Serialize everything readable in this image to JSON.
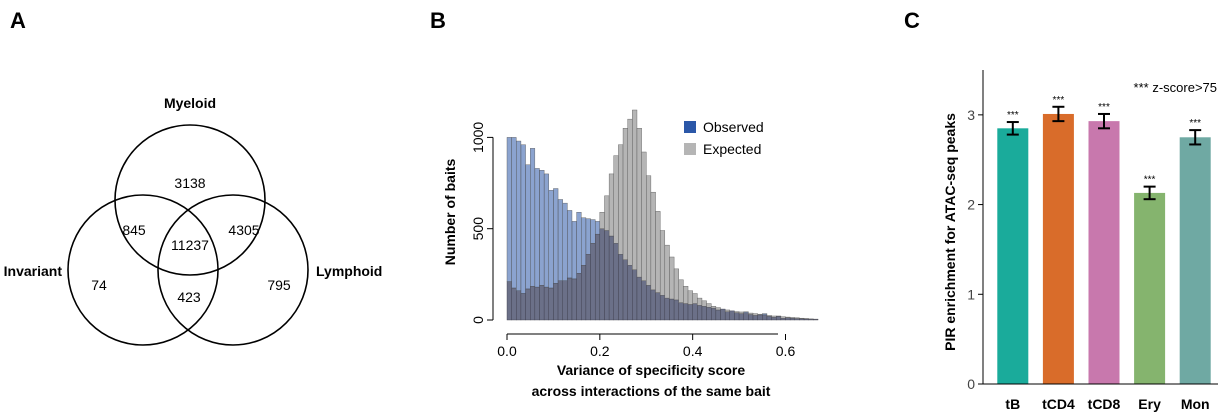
{
  "panels": {
    "a": "A",
    "b": "B",
    "c": "C"
  },
  "colors": {
    "observed": "#2b57a8",
    "expected": "#b5b5b5",
    "overlap": "#6b7088",
    "bars": [
      "#1aab9b",
      "#d96c2a",
      "#c878ad",
      "#85b46e",
      "#6fa9a3"
    ]
  },
  "chart_data": [
    {
      "type": "venn",
      "sets": [
        "Myeloid",
        "Invariant",
        "Lymphoid"
      ],
      "regions": {
        "myeloid_only": "3138",
        "myeloid_invariant": "845",
        "all_three": "11237",
        "myeloid_lymphoid": "4305",
        "invariant_only": "74",
        "invariant_lymphoid": "423",
        "lymphoid_only": "795"
      }
    },
    {
      "type": "histogram",
      "xlabel_line1": "Variance of specificity score",
      "xlabel_line2": "across interactions of the same bait",
      "ylabel": "Number of baits",
      "xlim": [
        0,
        0.67
      ],
      "ylim": [
        0,
        1150
      ],
      "xticks": [
        "0.0",
        "0.2",
        "0.4",
        "0.6"
      ],
      "yticks": [
        "0",
        "500",
        "1000"
      ],
      "legend": [
        "Observed",
        "Expected"
      ],
      "bin_width": 0.01,
      "observed": [
        1000,
        1000,
        980,
        960,
        850,
        940,
        830,
        820,
        800,
        710,
        720,
        660,
        640,
        600,
        540,
        590,
        560,
        555,
        550,
        540,
        500,
        490,
        460,
        420,
        360,
        330,
        300,
        275,
        235,
        215,
        190,
        165,
        150,
        135,
        120,
        115,
        110,
        95,
        90,
        85,
        90,
        80,
        75,
        70,
        65,
        55,
        60,
        45,
        50,
        40,
        35,
        45,
        30,
        25,
        28,
        35,
        20,
        15,
        22,
        10,
        12,
        10,
        8,
        7,
        6,
        5,
        4
      ],
      "expected": [
        210,
        175,
        160,
        145,
        170,
        185,
        180,
        190,
        180,
        175,
        200,
        215,
        215,
        230,
        225,
        255,
        300,
        360,
        420,
        470,
        590,
        680,
        800,
        900,
        960,
        1050,
        1100,
        1150,
        1050,
        920,
        790,
        700,
        595,
        490,
        410,
        345,
        280,
        220,
        185,
        160,
        145,
        120,
        105,
        90,
        75,
        68,
        60,
        55,
        50,
        46,
        44,
        40,
        38,
        35,
        32,
        28,
        25,
        22,
        20,
        18,
        16,
        14,
        12,
        10,
        8,
        6,
        5
      ]
    },
    {
      "type": "bar",
      "categories": [
        "tB",
        "tCD4",
        "tCD8",
        "Ery",
        "Mon"
      ],
      "values": [
        2.85,
        3.01,
        2.93,
        2.13,
        2.75
      ],
      "errors": [
        0.07,
        0.08,
        0.08,
        0.07,
        0.08
      ],
      "significance": [
        "***",
        "***",
        "***",
        "***",
        "***"
      ],
      "ylabel": "PIR enrichment for ATAC-seq peaks",
      "yticks": [
        "0",
        "1",
        "2",
        "3"
      ],
      "ylim": [
        0,
        3.5
      ],
      "annotation": "*** z-score>75"
    }
  ]
}
